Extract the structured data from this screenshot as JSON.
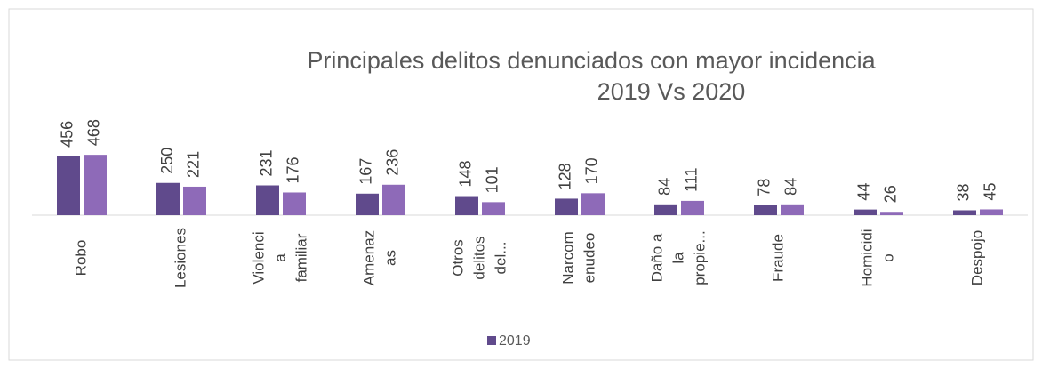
{
  "chart_data": {
    "type": "bar",
    "title": [
      "Principales delitos denunciados  con mayor incidencia",
      "2019 Vs 2020"
    ],
    "categories": [
      [
        "Robo"
      ],
      [
        "Lesiones"
      ],
      [
        "Violenci",
        "a",
        "familiar"
      ],
      [
        "Amenaz",
        "as"
      ],
      [
        "Otros",
        "delitos",
        "del..."
      ],
      [
        "Narcom",
        "enudeo"
      ],
      [
        "Daño a",
        "la",
        "propie..."
      ],
      [
        "Fraude"
      ],
      [
        "Homicidi",
        "o"
      ],
      [
        "Despojo"
      ]
    ],
    "series": [
      {
        "name": "2019",
        "color": "#604a8c",
        "values": [
          456,
          250,
          231,
          167,
          148,
          128,
          84,
          78,
          44,
          38
        ]
      },
      {
        "color": "#8e6ab8",
        "values": [
          468,
          221,
          176,
          236,
          101,
          170,
          111,
          84,
          26,
          45
        ]
      }
    ],
    "legend": "bottom"
  }
}
